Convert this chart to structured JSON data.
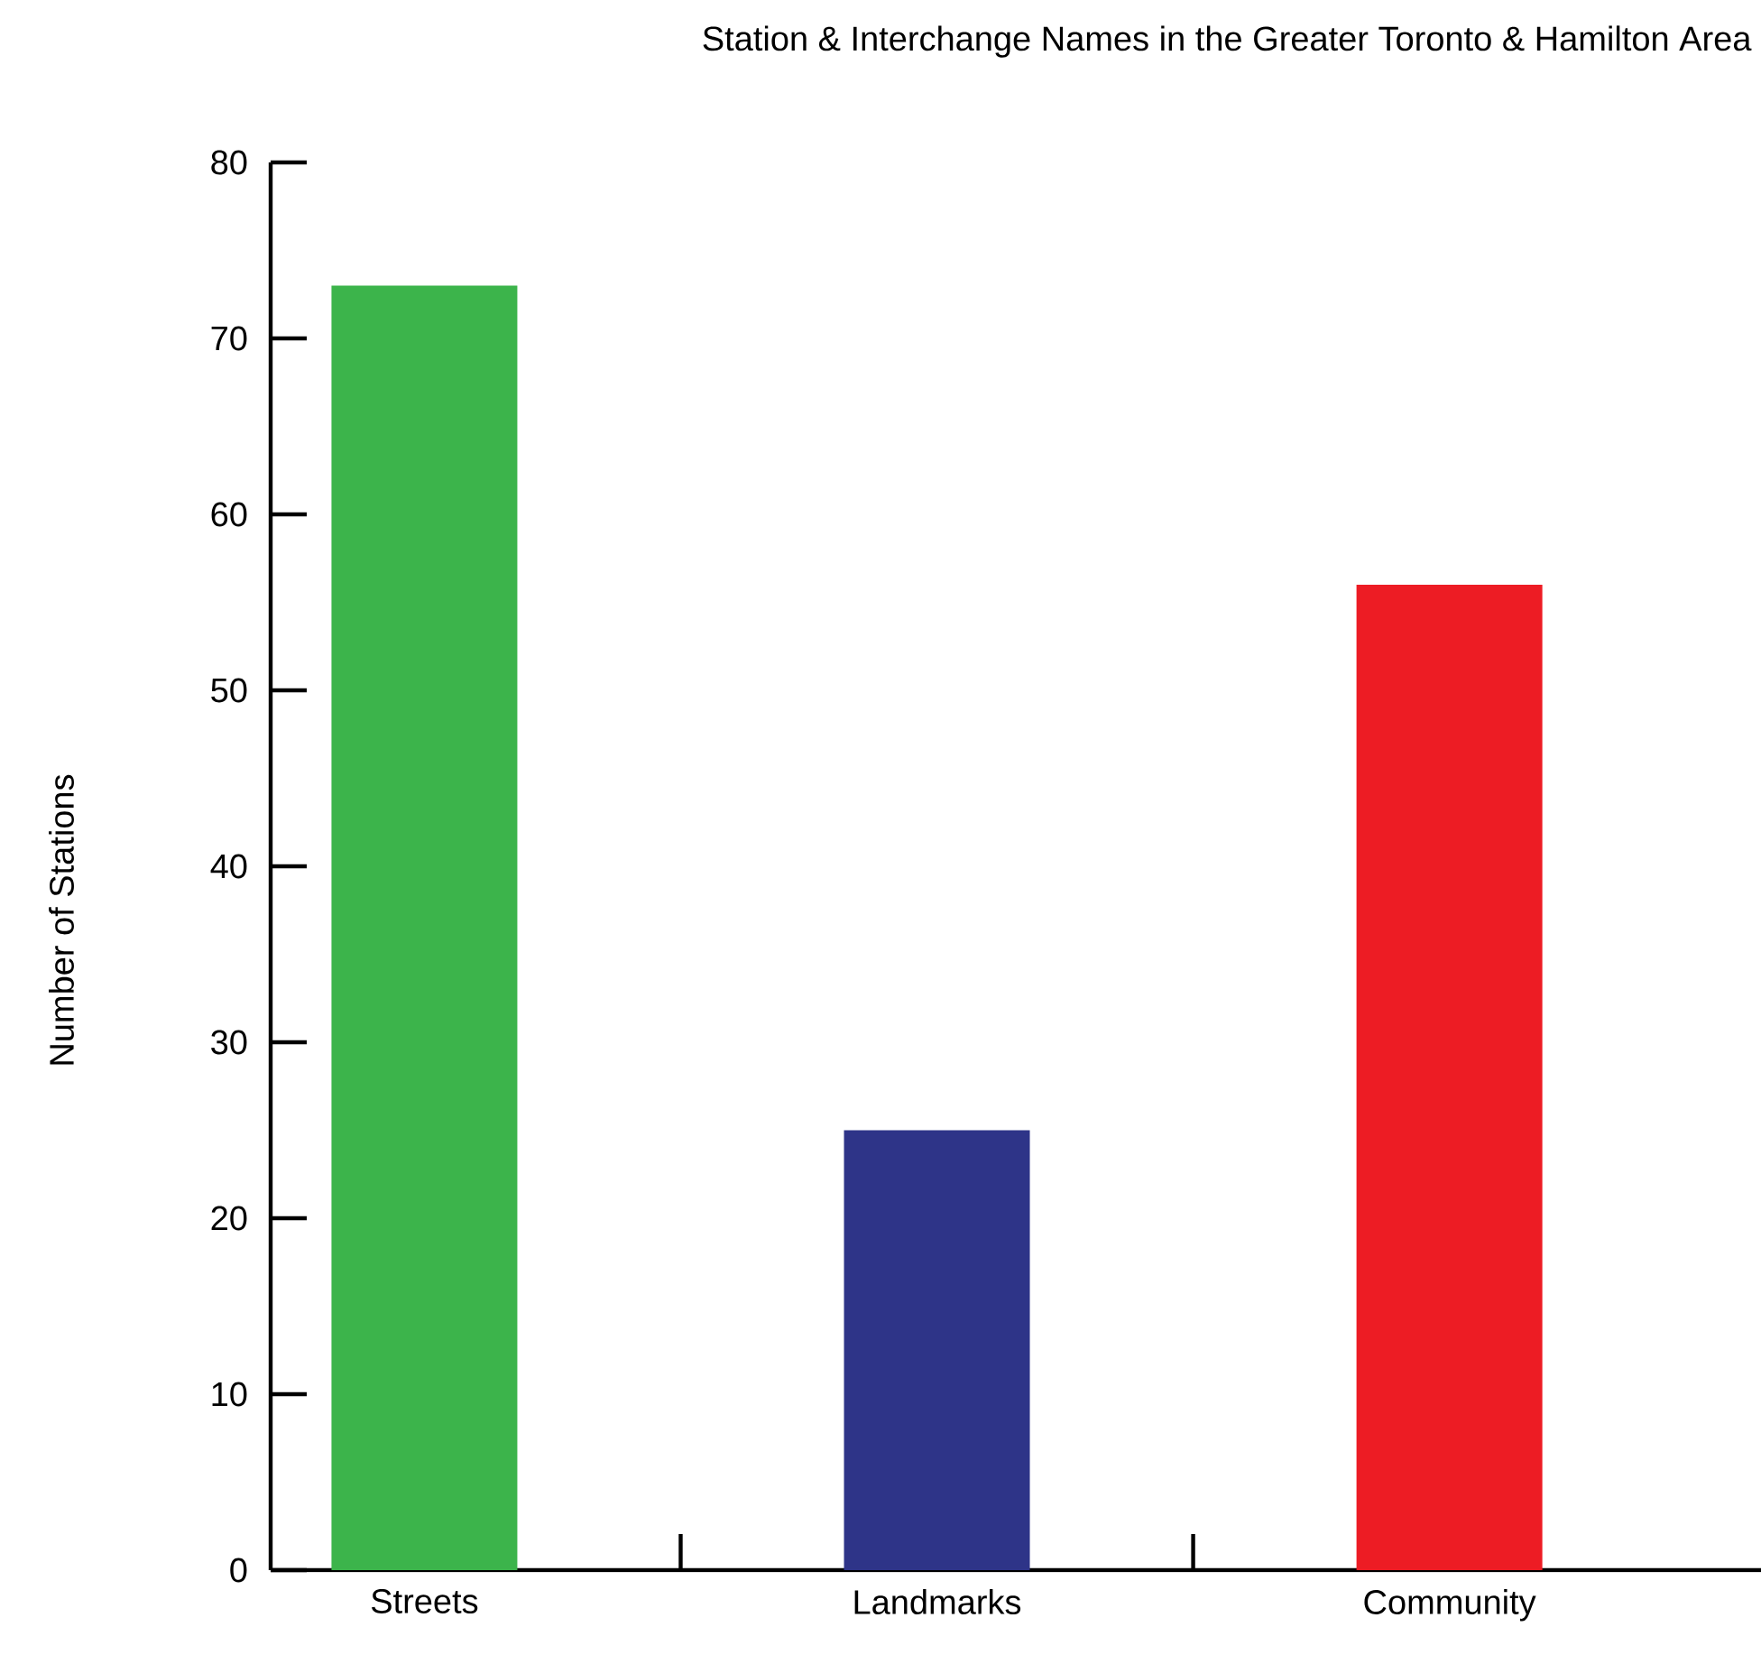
{
  "chart_data": {
    "type": "bar",
    "title": "Station & Interchange Names in the Greater Toronto & Hamilton Area",
    "ylabel": "Number of Stations",
    "categories": [
      "Streets",
      "Landmarks",
      "Community"
    ],
    "values": [
      73,
      25,
      56
    ],
    "colors": [
      "#3cb44b",
      "#2e3488",
      "#ed1c24"
    ],
    "ylim": [
      0,
      80
    ],
    "yticks": [
      0,
      10,
      20,
      30,
      40,
      50,
      60,
      70,
      80
    ],
    "grid": false
  }
}
